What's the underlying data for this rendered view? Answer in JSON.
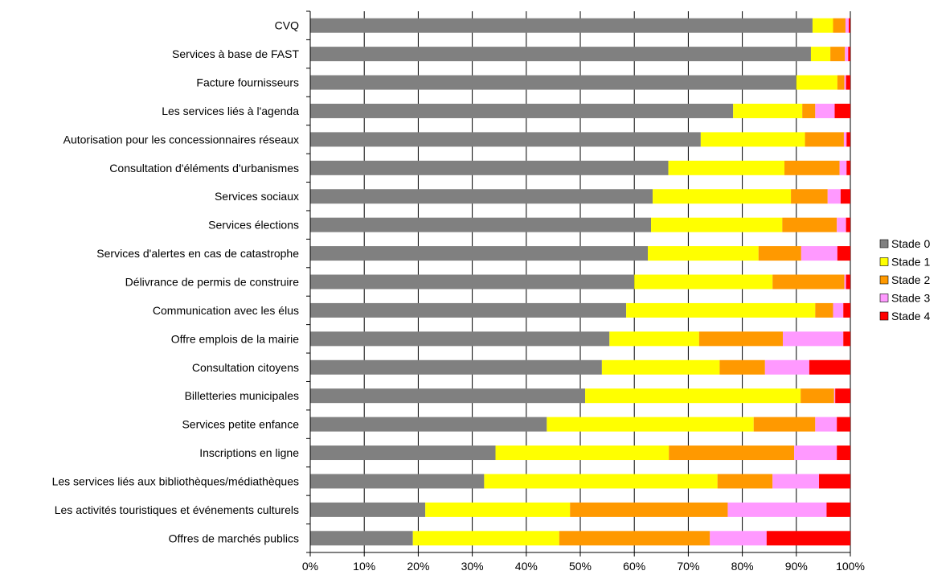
{
  "chart_data": {
    "type": "bar",
    "orientation": "horizontal",
    "stacked": "percent",
    "title": "",
    "xlabel": "",
    "ylabel": "",
    "xlim": [
      0,
      100
    ],
    "x_ticks": [
      "0%",
      "10%",
      "20%",
      "30%",
      "40%",
      "50%",
      "60%",
      "70%",
      "80%",
      "90%",
      "100%"
    ],
    "grid": "vertical",
    "legend_position": "right",
    "categories": [
      "CVQ",
      "Services à base de FAST",
      "Facture fournisseurs",
      "Les services liés à l'agenda",
      "Autorisation pour les concessionnaires réseaux",
      "Consultation d'éléments d'urbanismes",
      "Services sociaux",
      "Services élections",
      "Services d'alertes en cas de catastrophe",
      "Délivrance de permis de construire",
      "Communication avec les élus",
      "Offre emplois de la mairie",
      "Consultation citoyens",
      "Billetteries municipales",
      "Services petite enfance",
      "Inscriptions en ligne",
      "Les services liés aux bibliothèques/médiathèques",
      "Les activités touristiques et événements culturels",
      "Offres de marchés publics"
    ],
    "series": [
      {
        "name": "Stade 0",
        "color": "#808080",
        "values": [
          93.0,
          92.7,
          90.0,
          78.3,
          72.3,
          66.3,
          63.4,
          63.1,
          62.5,
          60.0,
          58.5,
          55.4,
          54.0,
          50.9,
          43.8,
          34.3,
          32.2,
          21.3,
          19.0
        ]
      },
      {
        "name": "Stade 1",
        "color": "#FFFF00",
        "values": [
          3.8,
          3.6,
          7.6,
          12.8,
          19.3,
          21.5,
          25.6,
          24.3,
          20.5,
          25.6,
          35.0,
          16.6,
          21.8,
          39.9,
          38.3,
          32.1,
          43.2,
          26.8,
          27.1
        ]
      },
      {
        "name": "Stade 2",
        "color": "#FF9900",
        "values": [
          2.3,
          2.7,
          1.3,
          2.4,
          7.2,
          10.2,
          6.8,
          10.1,
          7.9,
          13.3,
          3.3,
          15.5,
          8.4,
          6.2,
          11.4,
          23.2,
          10.2,
          29.2,
          27.9
        ]
      },
      {
        "name": "Stade 3",
        "color": "#FF99FF",
        "values": [
          0.6,
          0.6,
          0.3,
          3.6,
          0.5,
          1.3,
          2.4,
          1.7,
          6.7,
          0.3,
          1.9,
          11.2,
          8.2,
          0.2,
          4.0,
          7.9,
          8.6,
          18.3,
          10.5
        ]
      },
      {
        "name": "Stade 4",
        "color": "#FF0000",
        "values": [
          0.3,
          0.4,
          0.8,
          2.9,
          0.7,
          0.7,
          1.8,
          0.8,
          2.4,
          0.8,
          1.3,
          1.3,
          7.6,
          2.8,
          2.5,
          2.5,
          5.8,
          4.4,
          15.5
        ]
      }
    ]
  }
}
